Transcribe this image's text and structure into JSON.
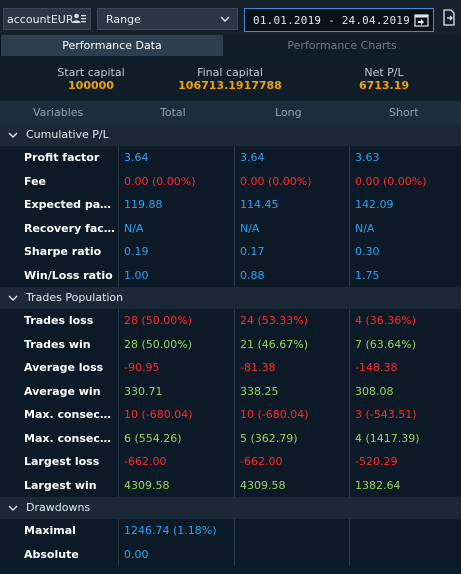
{
  "toolbar": {
    "account": "accountEUR",
    "range": "Range",
    "dates": "01.01.2019 - 24.04.2019"
  },
  "tabs": [
    "Performance Data",
    "Performance Charts"
  ],
  "summary": [
    {
      "label": "Start capital",
      "value": "100000"
    },
    {
      "label": "Final capital",
      "value": "106713.1917788"
    },
    {
      "label": "Net P/L",
      "value": "6713.19"
    }
  ],
  "columns": [
    "Variables",
    "Total",
    "Long",
    "Short"
  ],
  "sections": [
    {
      "title": "Cumulative P/L",
      "rows": [
        {
          "label": "Profit factor",
          "cells": [
            {
              "v": "3.64",
              "c": "blue"
            },
            {
              "v": "3.64",
              "c": "blue"
            },
            {
              "v": "3.63",
              "c": "blue"
            }
          ]
        },
        {
          "label": "Fee",
          "cells": [
            {
              "v": "0.00 (0.00%)",
              "c": "red"
            },
            {
              "v": "0.00 (0.00%)",
              "c": "red"
            },
            {
              "v": "0.00 (0.00%)",
              "c": "red"
            }
          ]
        },
        {
          "label": "Expected pay...",
          "cells": [
            {
              "v": "119.88",
              "c": "blue"
            },
            {
              "v": "114.45",
              "c": "blue"
            },
            {
              "v": "142.09",
              "c": "blue"
            }
          ]
        },
        {
          "label": "Recovery fac...",
          "cells": [
            {
              "v": "N/A",
              "c": "blue"
            },
            {
              "v": "N/A",
              "c": "blue"
            },
            {
              "v": "N/A",
              "c": "blue"
            }
          ]
        },
        {
          "label": "Sharpe ratio",
          "cells": [
            {
              "v": "0.19",
              "c": "blue"
            },
            {
              "v": "0.17",
              "c": "blue"
            },
            {
              "v": "0.30",
              "c": "blue"
            }
          ]
        },
        {
          "label": "Win/Loss ratio",
          "cells": [
            {
              "v": "1.00",
              "c": "blue"
            },
            {
              "v": "0.88",
              "c": "blue"
            },
            {
              "v": "1.75",
              "c": "blue"
            }
          ]
        }
      ]
    },
    {
      "title": "Trades Population",
      "rows": [
        {
          "label": "Trades loss",
          "cells": [
            {
              "v": "28 (50.00%)",
              "c": "red"
            },
            {
              "v": "24 (53.33%)",
              "c": "red"
            },
            {
              "v": "4 (36.36%)",
              "c": "red"
            }
          ]
        },
        {
          "label": "Trades win",
          "cells": [
            {
              "v": "28 (50.00%)",
              "c": "green"
            },
            {
              "v": "21 (46.67%)",
              "c": "green"
            },
            {
              "v": "7 (63.64%)",
              "c": "green"
            }
          ]
        },
        {
          "label": "Average loss",
          "cells": [
            {
              "v": "-90.95",
              "c": "red"
            },
            {
              "v": "-81.38",
              "c": "red"
            },
            {
              "v": "-148.38",
              "c": "red"
            }
          ]
        },
        {
          "label": "Average win",
          "cells": [
            {
              "v": "330.71",
              "c": "green"
            },
            {
              "v": "338.25",
              "c": "green"
            },
            {
              "v": "308.08",
              "c": "green"
            }
          ]
        },
        {
          "label": "Max. consecu...",
          "cells": [
            {
              "v": "10 (-680.04)",
              "c": "red"
            },
            {
              "v": "10 (-680.04)",
              "c": "red"
            },
            {
              "v": "3 (-543.51)",
              "c": "red"
            }
          ]
        },
        {
          "label": "Max. consecu...",
          "cells": [
            {
              "v": "6 (554.26)",
              "c": "green"
            },
            {
              "v": "5 (362.79)",
              "c": "green"
            },
            {
              "v": "4 (1417.39)",
              "c": "green"
            }
          ]
        },
        {
          "label": "Largest loss",
          "cells": [
            {
              "v": "-662.00",
              "c": "red"
            },
            {
              "v": "-662.00",
              "c": "red"
            },
            {
              "v": "-520.29",
              "c": "red"
            }
          ]
        },
        {
          "label": "Largest win",
          "cells": [
            {
              "v": "4309.58",
              "c": "green"
            },
            {
              "v": "4309.58",
              "c": "green"
            },
            {
              "v": "1382.64",
              "c": "green"
            }
          ]
        }
      ]
    },
    {
      "title": "Drawdowns",
      "rows": [
        {
          "label": "Maximal",
          "cells": [
            {
              "v": "1246.74 (1.18%)",
              "c": "blue"
            },
            {
              "v": "",
              "c": "blue"
            },
            {
              "v": "",
              "c": "blue"
            }
          ]
        },
        {
          "label": "Absolute",
          "cells": [
            {
              "v": "0.00",
              "c": "blue"
            },
            {
              "v": "",
              "c": "blue"
            },
            {
              "v": "",
              "c": "blue"
            }
          ]
        }
      ]
    }
  ],
  "icons": {
    "account": "user-list-icon",
    "range": "chevron-down-icon",
    "dates": "calendar-icon",
    "export": "export-icon",
    "section": "chevron-down-icon"
  },
  "colors": {
    "positive": "#9ed15a",
    "negative": "#ff2b2b",
    "neutral": "#2ea3f2",
    "highlight": "#f0a400"
  }
}
